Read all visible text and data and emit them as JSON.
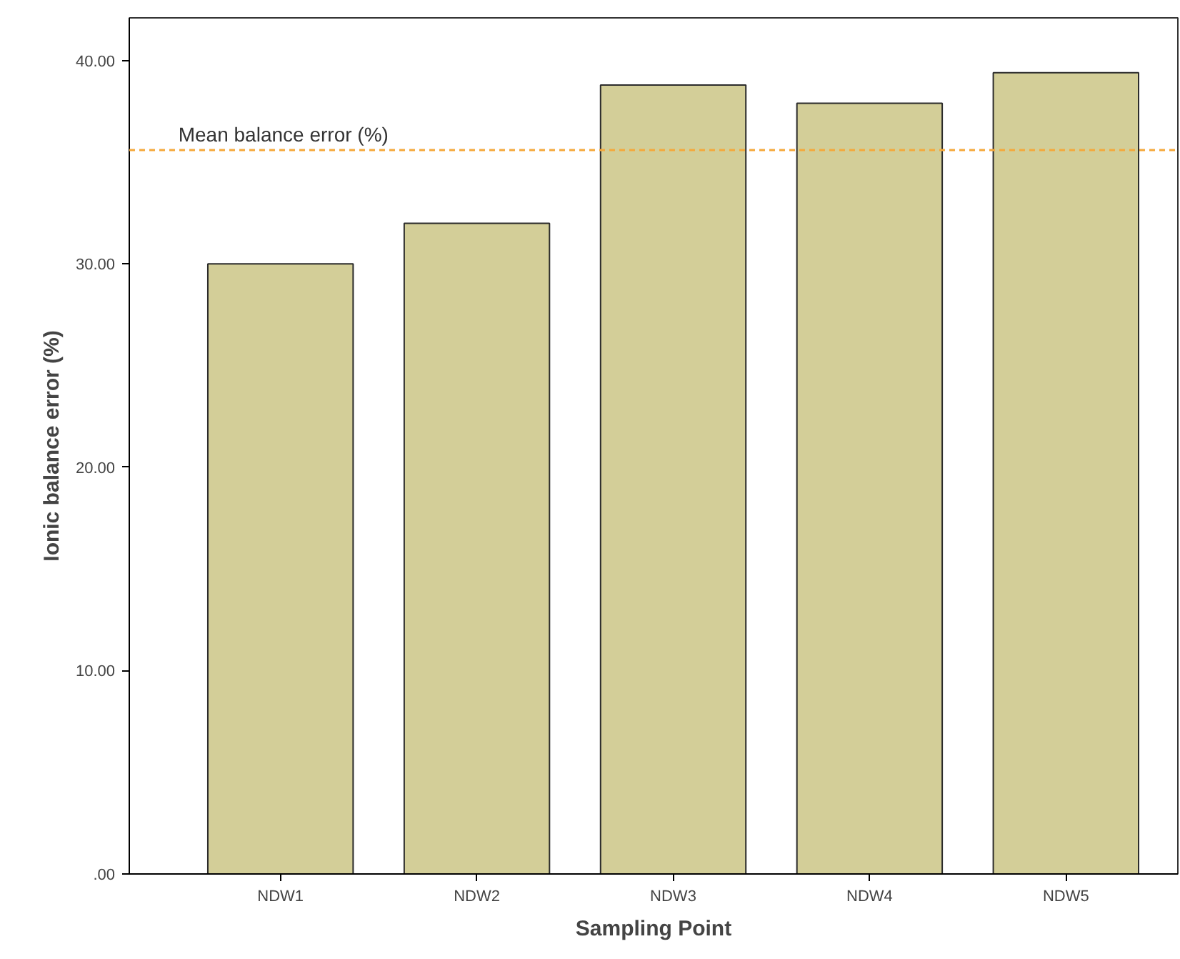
{
  "chart_data": {
    "type": "bar",
    "xlabel": "Sampling Point",
    "ylabel": "Ionic balance error (%)",
    "categories": [
      "NDW1",
      "NDW2",
      "NDW3",
      "NDW4",
      "NDW5"
    ],
    "values": [
      30.0,
      32.0,
      38.8,
      37.9,
      39.4
    ],
    "color": "#d3ce98",
    "ylim": [
      0,
      42.1
    ],
    "yticks": [
      {
        "value": 0,
        "label": ".00"
      },
      {
        "value": 10,
        "label": "10.00"
      },
      {
        "value": 20,
        "label": "20.00"
      },
      {
        "value": 30,
        "label": "30.00"
      },
      {
        "value": 40,
        "label": "40.00"
      }
    ],
    "ref_lines": [
      {
        "axis": "y",
        "value": 35.6,
        "label": "Mean balance error (%)",
        "color": "#f5a83a",
        "line_style": "dotted"
      }
    ],
    "grid": false
  }
}
